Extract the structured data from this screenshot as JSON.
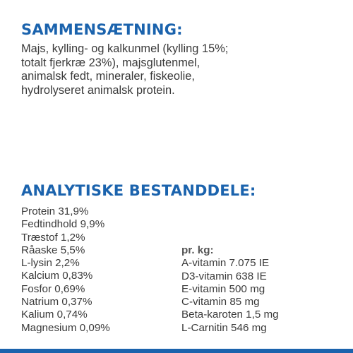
{
  "composition": {
    "heading": "SAMMENSÆTNING:",
    "lines": [
      "Majs, kylling- og kalkunmel (kylling 15%;",
      "totalt fjerkræ 23%), majsglutenmel,",
      "animalsk fedt, mineraler, fiskeolie,",
      "hydrolyseret animalsk protein."
    ]
  },
  "analytical": {
    "heading": "ANALYTISKE BESTANDDELE:",
    "left_items": [
      "Protein 31,9%",
      "Fedtindhold 9,9%",
      "Træstof 1,2%",
      "Råaske 5,5%",
      "L-lysin 2,2%",
      "Kalcium 0,83%",
      "Fosfor 0,69%",
      "Natrium 0,37%",
      "Kalium 0,74%",
      "Magnesium 0,09%"
    ],
    "per_kg_label": "pr. kg:",
    "right_items": [
      "A-vitamin 7.075 IE",
      "D3-vitamin 638 IE",
      "E-vitamin 500 mg",
      "C-vitamin 85 mg",
      "Beta-karoten 1,5 mg",
      "L-Carnitin 546 mg"
    ]
  },
  "colors": {
    "heading": "#1b63ad",
    "body_text": "#3a3a3a",
    "bottom_bar": "#1b63ad"
  }
}
